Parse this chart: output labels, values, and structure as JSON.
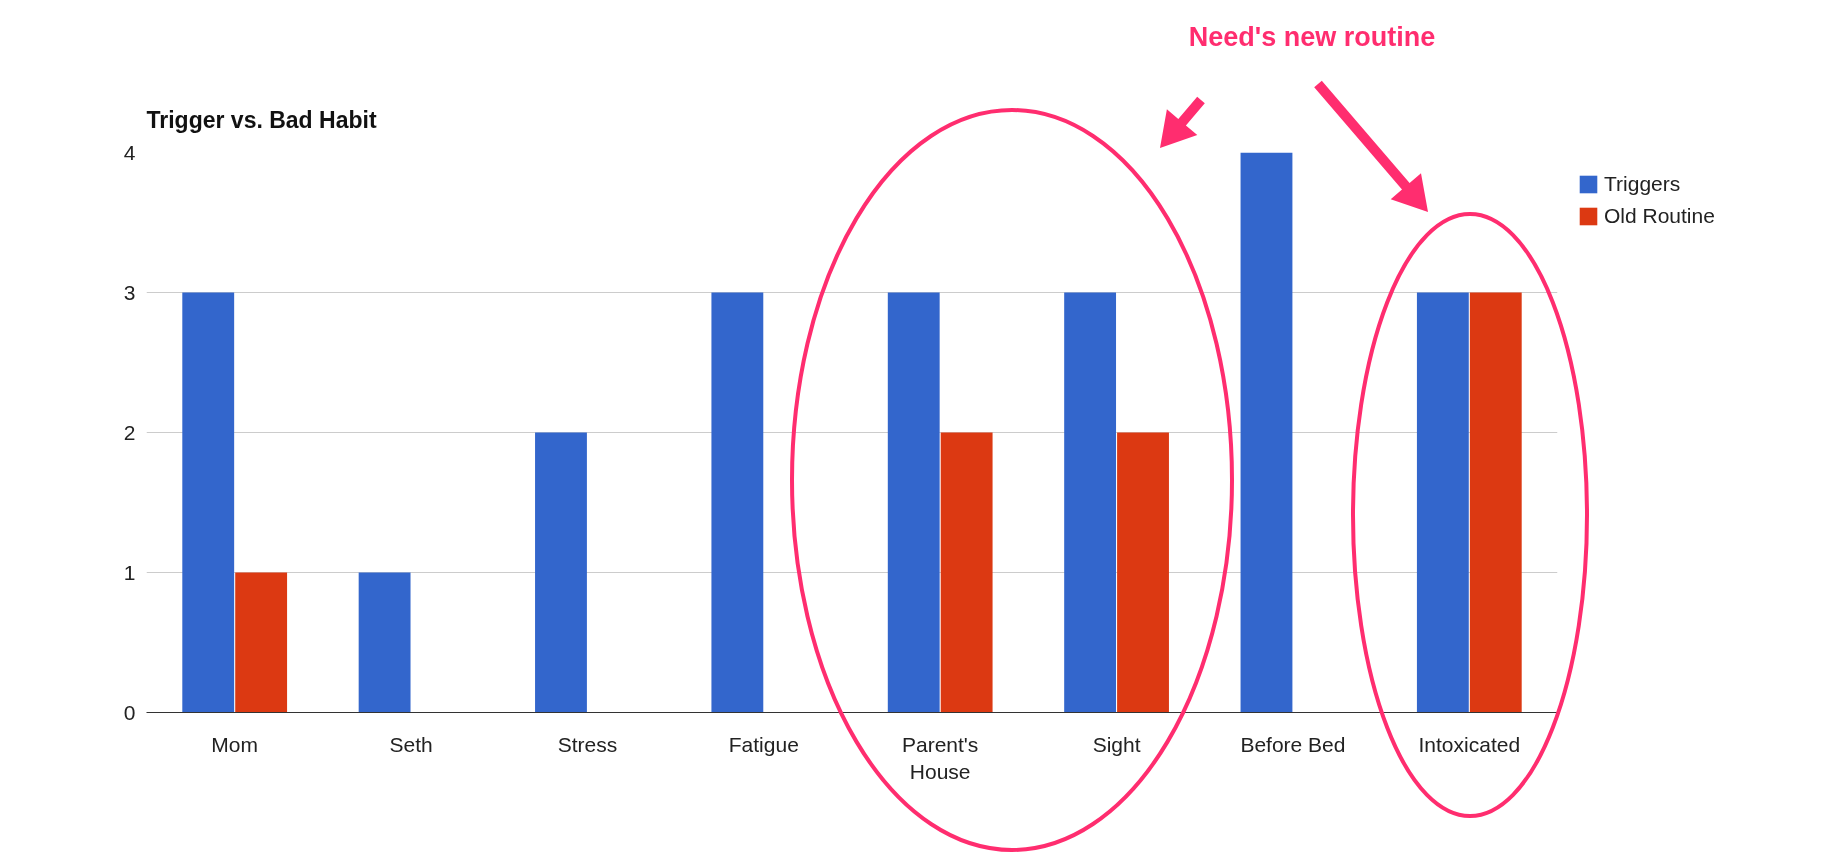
{
  "chart_data": {
    "type": "bar",
    "title": "Trigger vs. Bad Habit",
    "categories": [
      "Mom",
      "Seth",
      "Stress",
      "Fatigue",
      "Parent's House",
      "Sight",
      "Before Bed",
      "Intoxicated"
    ],
    "series": [
      {
        "name": "Triggers",
        "color": "#3366cc",
        "values": [
          3,
          1,
          2,
          3,
          3,
          3,
          4,
          3
        ]
      },
      {
        "name": "Old Routine",
        "color": "#dc3912",
        "values": [
          1,
          0,
          0,
          0,
          2,
          2,
          0,
          3
        ]
      }
    ],
    "ylim": [
      0,
      4
    ],
    "yticks": [
      0,
      1,
      2,
      3,
      4
    ],
    "grid": "y",
    "legend": "top right",
    "annotations": [
      "Need's new routine"
    ]
  }
}
